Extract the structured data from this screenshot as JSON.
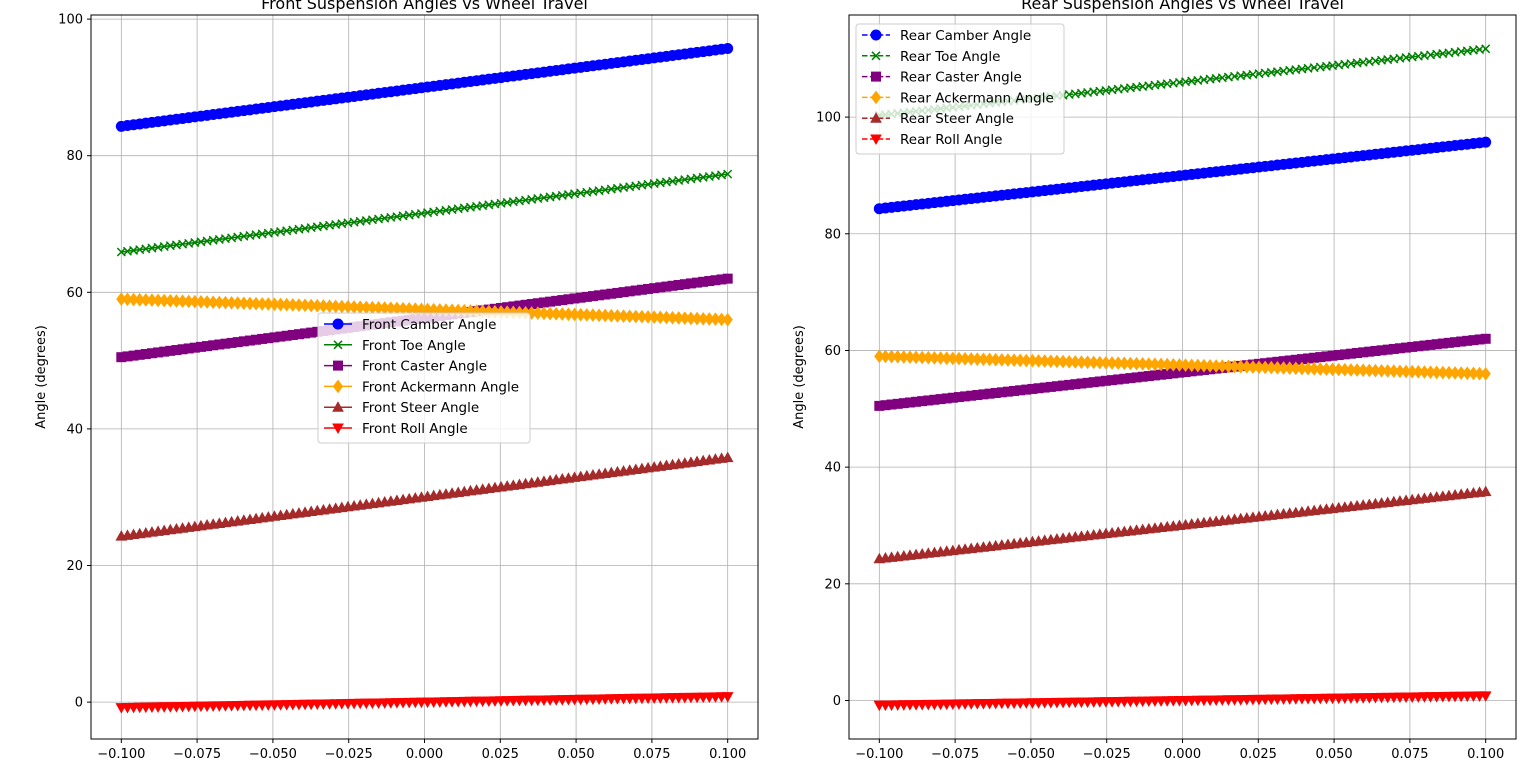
{
  "chart_data": [
    {
      "type": "line",
      "title": "Front Suspension Angles vs Wheel Travel",
      "xlabel": "",
      "ylabel": "Angle (degrees)",
      "xlim": [
        -0.11,
        0.11
      ],
      "ylim": [
        -5.4,
        100.6
      ],
      "xticks": [
        -0.1,
        -0.075,
        -0.05,
        -0.025,
        0.0,
        0.025,
        0.05,
        0.075,
        0.1
      ],
      "xtick_labels": [
        "−0.100",
        "−0.075",
        "−0.050",
        "−0.025",
        "0.000",
        "0.025",
        "0.050",
        "0.075",
        "0.100"
      ],
      "yticks": [
        0,
        20,
        40,
        60,
        80,
        100
      ],
      "ytick_labels": [
        "0",
        "20",
        "40",
        "60",
        "80",
        "100"
      ],
      "grid": true,
      "legend_position": "center",
      "line_style": "solid",
      "x": {
        "start": -0.1,
        "end": 0.1,
        "count": 100
      },
      "series": [
        {
          "name": "Front Camber Angle",
          "color": "#0000ff",
          "marker": "circle",
          "start": 84.3,
          "end": 95.7
        },
        {
          "name": "Front Toe Angle",
          "color": "#008000",
          "marker": "x",
          "start": 65.9,
          "end": 77.3
        },
        {
          "name": "Front Caster Angle",
          "color": "#800080",
          "marker": "square",
          "start": 50.5,
          "end": 62.0
        },
        {
          "name": "Front Ackermann Angle",
          "color": "#ffa500",
          "marker": "diamond",
          "start": 59.0,
          "end": 56.0
        },
        {
          "name": "Front Steer Angle",
          "color": "#a52a2a",
          "marker": "triangle-up",
          "start": 24.3,
          "end": 35.8
        },
        {
          "name": "Front Roll Angle",
          "color": "#ff0000",
          "marker": "triangle-down",
          "start": -0.8,
          "end": 0.8
        }
      ]
    },
    {
      "type": "line",
      "title": "Rear Suspension Angles vs Wheel Travel",
      "xlabel": "",
      "ylabel": "Angle (degrees)",
      "xlim": [
        -0.11,
        0.11
      ],
      "ylim": [
        -6.6,
        117.5
      ],
      "xticks": [
        -0.1,
        -0.075,
        -0.05,
        -0.025,
        0.0,
        0.025,
        0.05,
        0.075,
        0.1
      ],
      "xtick_labels": [
        "−0.100",
        "−0.075",
        "−0.050",
        "−0.025",
        "0.000",
        "0.025",
        "0.050",
        "0.075",
        "0.100"
      ],
      "yticks": [
        0,
        20,
        40,
        60,
        80,
        100
      ],
      "ytick_labels": [
        "0",
        "20",
        "40",
        "60",
        "80",
        "100"
      ],
      "grid": true,
      "legend_position": "upper left",
      "line_style": "dashed",
      "x": {
        "start": -0.1,
        "end": 0.1,
        "count": 100
      },
      "series": [
        {
          "name": "Rear Camber Angle",
          "color": "#0000ff",
          "marker": "circle",
          "start": 84.3,
          "end": 95.7
        },
        {
          "name": "Rear Toe Angle",
          "color": "#008000",
          "marker": "x",
          "start": 100.3,
          "end": 111.7
        },
        {
          "name": "Rear Caster Angle",
          "color": "#800080",
          "marker": "square",
          "start": 50.5,
          "end": 62.0
        },
        {
          "name": "Rear Ackermann Angle",
          "color": "#ffa500",
          "marker": "diamond",
          "start": 59.0,
          "end": 56.0
        },
        {
          "name": "Rear Steer Angle",
          "color": "#a52a2a",
          "marker": "triangle-up",
          "start": 24.3,
          "end": 35.8
        },
        {
          "name": "Rear Roll Angle",
          "color": "#ff0000",
          "marker": "triangle-down",
          "start": -0.8,
          "end": 0.8
        }
      ]
    }
  ]
}
